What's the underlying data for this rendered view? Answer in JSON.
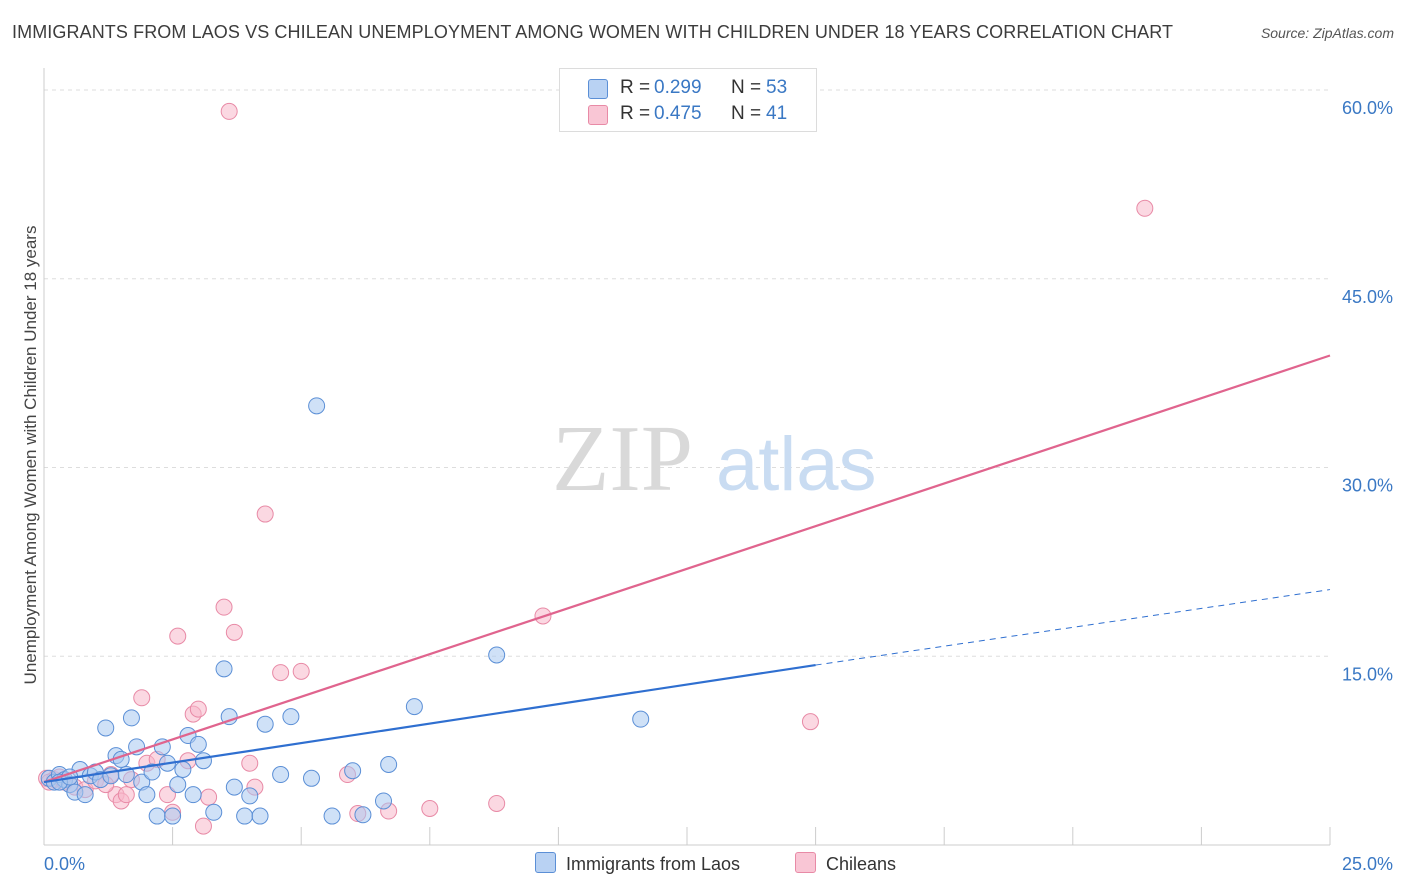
{
  "header": {
    "title": "IMMIGRANTS FROM LAOS VS CHILEAN UNEMPLOYMENT AMONG WOMEN WITH CHILDREN UNDER 18 YEARS CORRELATION CHART",
    "source": "Source: ZipAtlas.com"
  },
  "watermark": {
    "zip": "ZIP",
    "atlas": "atlas"
  },
  "legend": {
    "r_label": "R =",
    "n_label": "N =",
    "laos": {
      "r": "0.299",
      "n": "53"
    },
    "chileans": {
      "r": "0.475",
      "n": "41"
    }
  },
  "colors": {
    "laos_fill": "#a8c8f0",
    "laos_stroke": "#5b8fd6",
    "laos_line": "#2f6fd0",
    "chile_fill": "#f7b8cb",
    "chile_stroke": "#e88aa6",
    "chile_line": "#e0648e",
    "tick_text": "#3a78c4",
    "grid": "#dddddd"
  },
  "chart_data": {
    "type": "scatter",
    "title": "IMMIGRANTS FROM LAOS VS CHILEAN UNEMPLOYMENT AMONG WOMEN WITH CHILDREN UNDER 18 YEARS CORRELATION CHART",
    "xlabel": "",
    "ylabel": "Unemployment Among Women with Children Under 18 years",
    "xlim": [
      0,
      25
    ],
    "ylim": [
      0,
      60
    ],
    "x_tick_labels": [
      "0.0%",
      "25.0%"
    ],
    "y_ticks": [
      15,
      30,
      45,
      60
    ],
    "y_tick_labels": [
      "15.0%",
      "30.0%",
      "45.0%",
      "60.0%"
    ],
    "grid": true,
    "legend_position": "top-center",
    "series": [
      {
        "name": "Immigrants from Laos",
        "points": [
          [
            0.1,
            5.3
          ],
          [
            0.2,
            5.0
          ],
          [
            0.3,
            5.6
          ],
          [
            0.4,
            5.2
          ],
          [
            0.5,
            4.8
          ],
          [
            0.6,
            4.2
          ],
          [
            0.7,
            6.0
          ],
          [
            0.8,
            4.0
          ],
          [
            0.9,
            5.5
          ],
          [
            1.0,
            5.8
          ],
          [
            1.1,
            5.2
          ],
          [
            1.2,
            9.3
          ],
          [
            1.3,
            5.5
          ],
          [
            1.4,
            7.1
          ],
          [
            1.5,
            6.8
          ],
          [
            1.6,
            5.6
          ],
          [
            1.7,
            10.1
          ],
          [
            1.8,
            7.8
          ],
          [
            1.9,
            5.0
          ],
          [
            2.0,
            4.0
          ],
          [
            2.1,
            5.8
          ],
          [
            2.2,
            2.3
          ],
          [
            2.3,
            7.8
          ],
          [
            2.4,
            6.5
          ],
          [
            2.5,
            2.3
          ],
          [
            2.6,
            4.8
          ],
          [
            2.7,
            6.0
          ],
          [
            2.8,
            8.7
          ],
          [
            2.9,
            4.0
          ],
          [
            3.0,
            8.0
          ],
          [
            3.1,
            6.7
          ],
          [
            3.3,
            2.6
          ],
          [
            3.5,
            14.0
          ],
          [
            3.6,
            10.2
          ],
          [
            3.7,
            4.6
          ],
          [
            3.9,
            2.3
          ],
          [
            4.0,
            3.9
          ],
          [
            4.2,
            2.3
          ],
          [
            4.3,
            9.6
          ],
          [
            4.6,
            5.6
          ],
          [
            4.8,
            10.2
          ],
          [
            5.2,
            5.3
          ],
          [
            5.3,
            34.9
          ],
          [
            5.6,
            2.3
          ],
          [
            6.0,
            5.9
          ],
          [
            6.2,
            2.4
          ],
          [
            6.6,
            3.5
          ],
          [
            6.7,
            6.4
          ],
          [
            7.2,
            11.0
          ],
          [
            8.8,
            15.1
          ],
          [
            11.6,
            10.0
          ],
          [
            0.3,
            5.0
          ],
          [
            0.5,
            5.4
          ]
        ],
        "trend": {
          "x": [
            0,
            15
          ],
          "y": [
            5.0,
            14.3
          ],
          "dashed_extension": {
            "x": [
              15,
              25
            ],
            "y": [
              14.3,
              20.3
            ]
          }
        }
      },
      {
        "name": "Chileans",
        "points": [
          [
            0.05,
            5.3
          ],
          [
            0.2,
            5.2
          ],
          [
            0.4,
            5.0
          ],
          [
            0.6,
            4.6
          ],
          [
            0.8,
            4.4
          ],
          [
            1.0,
            5.1
          ],
          [
            1.3,
            5.6
          ],
          [
            1.4,
            4.0
          ],
          [
            1.5,
            3.5
          ],
          [
            1.6,
            4.0
          ],
          [
            1.7,
            5.2
          ],
          [
            1.9,
            11.7
          ],
          [
            2.0,
            6.5
          ],
          [
            2.2,
            6.8
          ],
          [
            2.4,
            4.0
          ],
          [
            2.5,
            2.6
          ],
          [
            2.6,
            16.6
          ],
          [
            2.8,
            6.7
          ],
          [
            2.9,
            10.4
          ],
          [
            3.0,
            10.8
          ],
          [
            3.1,
            1.5
          ],
          [
            3.2,
            3.8
          ],
          [
            3.5,
            18.9
          ],
          [
            3.6,
            58.3
          ],
          [
            3.7,
            16.9
          ],
          [
            4.0,
            6.5
          ],
          [
            4.1,
            4.6
          ],
          [
            4.3,
            26.3
          ],
          [
            4.6,
            13.7
          ],
          [
            5.0,
            13.8
          ],
          [
            5.9,
            5.6
          ],
          [
            6.1,
            2.5
          ],
          [
            6.7,
            2.7
          ],
          [
            7.5,
            2.9
          ],
          [
            8.8,
            3.3
          ],
          [
            9.7,
            18.2
          ],
          [
            14.9,
            9.8
          ],
          [
            21.4,
            50.6
          ],
          [
            0.1,
            5.0
          ],
          [
            0.3,
            5.4
          ],
          [
            1.2,
            4.8
          ]
        ],
        "trend": {
          "x": [
            0,
            25
          ],
          "y": [
            5.0,
            38.9
          ]
        }
      }
    ]
  },
  "bottom_legend": {
    "laos_label": "Immigrants from Laos",
    "chile_label": "Chileans"
  }
}
